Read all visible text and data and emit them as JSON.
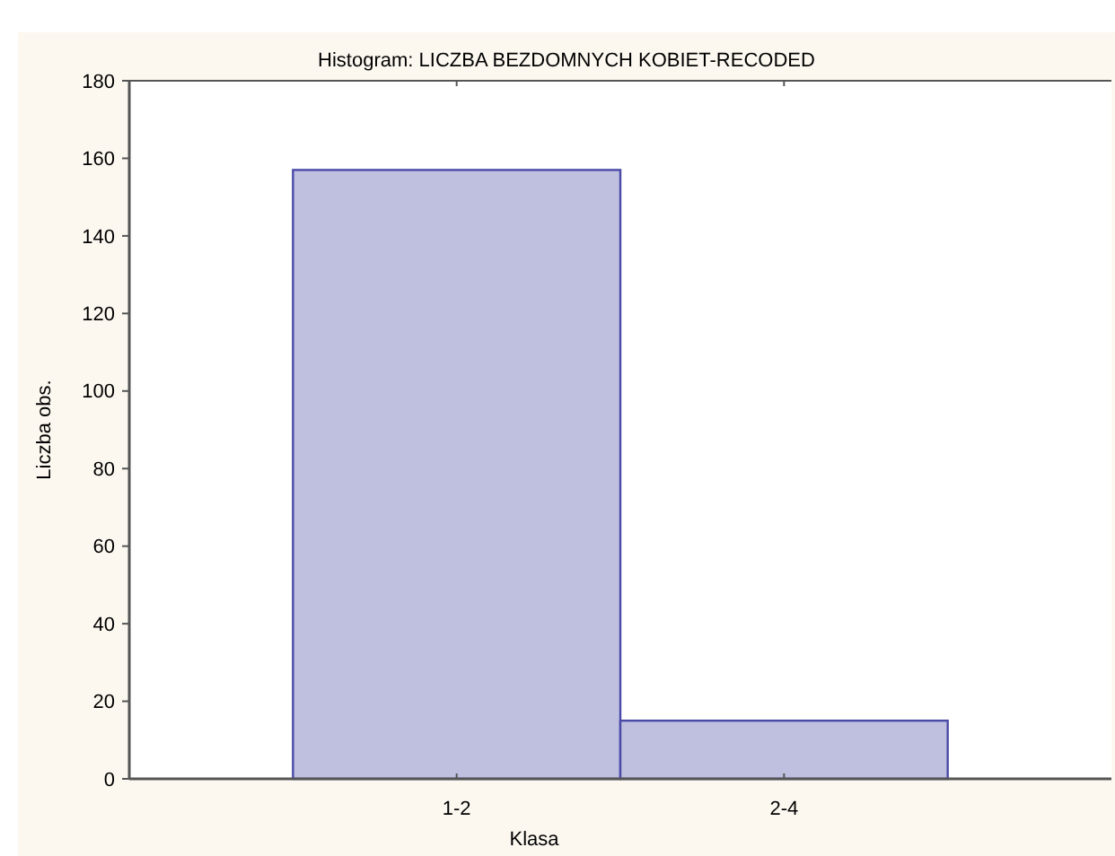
{
  "chart_data": {
    "type": "bar",
    "title": "Histogram: LICZBA BEZDOMNYCH KOBIET-RECODED",
    "xlabel": "Klasa",
    "ylabel": "Liczba obs.",
    "categories": [
      "1-2",
      "2-4"
    ],
    "values": [
      157,
      15
    ],
    "color": "#bfbfe0",
    "ylim": [
      0,
      180
    ],
    "yticks": [
      0,
      20,
      40,
      60,
      80,
      100,
      120,
      140,
      160,
      180
    ],
    "grid": false
  }
}
